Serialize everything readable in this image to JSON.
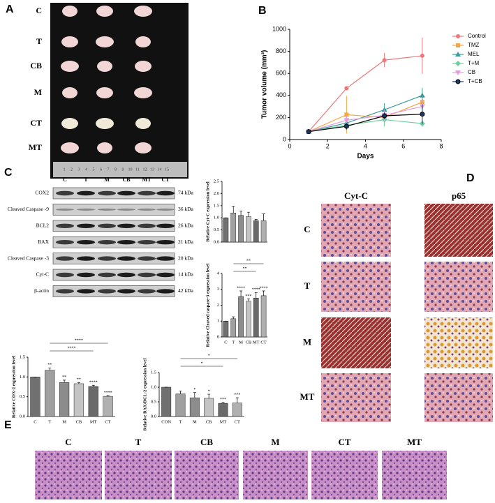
{
  "panel_labels": [
    "A",
    "B",
    "C",
    "D",
    "E"
  ],
  "photo": {
    "rows": [
      "C",
      "T",
      "CB",
      "M",
      "CT",
      "MT"
    ],
    "ruler": [
      1,
      2,
      3,
      4,
      5,
      6,
      7,
      8,
      9,
      10,
      11,
      12,
      13,
      14,
      15
    ]
  },
  "blot": {
    "lanes": [
      "C",
      "T",
      "M",
      "CB",
      "MT",
      "CT"
    ],
    "proteins": [
      {
        "name": "COX2",
        "size": "74 kDa"
      },
      {
        "name": "Cleaved Caspase -9",
        "size": "36 kDa"
      },
      {
        "name": "BCL2",
        "size": "26 kDa"
      },
      {
        "name": "BAX",
        "size": "21 kDa"
      },
      {
        "name": "Cleaved Caspase -3",
        "size": "20 kDa"
      },
      {
        "name": "Cyt-C",
        "size": "14 kDa"
      },
      {
        "name": "β-actin",
        "size": "42 kDa"
      }
    ]
  },
  "histology_d": {
    "columns": [
      "Cyt-C",
      "p65"
    ],
    "rows": [
      "C",
      "T",
      "M",
      "MT"
    ]
  },
  "histology_e": {
    "columns": [
      "C",
      "T",
      "CB",
      "M",
      "CT",
      "MT"
    ]
  },
  "chart_data": [
    {
      "type": "line",
      "y_label": "Tumor volume (mm³)",
      "x_label": "Days",
      "x": [
        1,
        3,
        5,
        7
      ],
      "xlim": [
        0,
        8
      ],
      "xticks": [
        0,
        2,
        4,
        6,
        8
      ],
      "ylim": [
        0,
        1000
      ],
      "yticks": [
        0,
        200,
        400,
        600,
        800,
        1000
      ],
      "series": [
        {
          "name": "Control",
          "color": "#e8787a",
          "marker": "circle",
          "values": [
            72,
            465,
            720,
            760
          ],
          "errors": [
            0,
            15,
            65,
            165
          ]
        },
        {
          "name": "TMZ",
          "color": "#f5a742",
          "marker": "square",
          "values": [
            72,
            225,
            200,
            340
          ],
          "errors": [
            0,
            170,
            70,
            60
          ]
        },
        {
          "name": "MEL",
          "color": "#3a9c9c",
          "marker": "triangle",
          "values": [
            72,
            150,
            270,
            400
          ],
          "errors": [
            0,
            40,
            60,
            70
          ]
        },
        {
          "name": "T+M",
          "color": "#6fcf9f",
          "marker": "diamond",
          "values": [
            72,
            130,
            180,
            145
          ],
          "errors": [
            0,
            20,
            60,
            30
          ]
        },
        {
          "name": "CB",
          "color": "#e49ce0",
          "marker": "triangle-down",
          "values": [
            72,
            175,
            220,
            300
          ],
          "errors": [
            0,
            40,
            50,
            60
          ]
        },
        {
          "name": "T+CB",
          "color": "#1b3a6b",
          "marker": "circle",
          "values": [
            72,
            120,
            215,
            230
          ],
          "errors": [
            0,
            30,
            30,
            90
          ]
        }
      ]
    },
    {
      "type": "bar",
      "y_label": "Relative Cyt-C expression level",
      "categories": [
        null,
        null,
        null,
        null,
        null,
        null
      ],
      "values": [
        1.0,
        1.2,
        1.1,
        1.05,
        0.88,
        0.88
      ],
      "errors": [
        0,
        0.27,
        0.18,
        0.18,
        0.05,
        0.28
      ],
      "colors": [
        "#707070",
        "#a0a0a0",
        "#8c8c8c",
        "#c4c4c4",
        "#6a6a6a",
        "#b0b0b0"
      ],
      "ylim": [
        0,
        2.5
      ],
      "yticks": [
        {
          "value": 0,
          "label": "0.0"
        },
        0.5,
        {
          "value": 1,
          "label": "1.0"
        },
        1.5,
        {
          "value": 2,
          "label": "2.0"
        },
        2.5
      ]
    },
    {
      "type": "bar",
      "y_label": "Relative Cleaved caspase-3 expression level",
      "categories": [
        "C",
        "T",
        "M",
        "CB",
        "MT",
        "CT"
      ],
      "values": [
        1.0,
        1.15,
        2.55,
        2.25,
        2.45,
        2.6
      ],
      "errors": [
        0,
        0.12,
        0.35,
        0.15,
        0.35,
        0.3
      ],
      "significance": [
        null,
        null,
        "****",
        "***",
        "****",
        "****"
      ],
      "brackets": [
        {
          "label": "**",
          "from": "T",
          "to": "CT"
        },
        {
          "label": "**",
          "from": "T",
          "to": "MT"
        }
      ],
      "colors": [
        "#707070",
        "#a0a0a0",
        "#8c8c8c",
        "#c4c4c4",
        "#6a6a6a",
        "#b0b0b0"
      ],
      "ylim": [
        0,
        4
      ],
      "yticks": [
        0,
        1,
        2,
        3,
        4
      ]
    },
    {
      "type": "bar",
      "y_label": "Relative COX-2 expression level",
      "categories": [
        "C",
        "T",
        "M",
        "CB",
        "MT",
        "CT"
      ],
      "values": [
        1.0,
        1.17,
        0.86,
        0.83,
        0.76,
        0.51
      ],
      "errors": [
        0,
        0.06,
        0.06,
        0.03,
        0.03,
        0.02
      ],
      "significance": [
        null,
        "**",
        "**",
        "**",
        "****",
        "****"
      ],
      "brackets": [
        {
          "label": "****",
          "from": "T",
          "to": "CT"
        },
        {
          "label": "****",
          "from": "T",
          "to": "MT"
        }
      ],
      "colors": [
        "#707070",
        "#a0a0a0",
        "#8c8c8c",
        "#c4c4c4",
        "#6a6a6a",
        "#b0b0b0"
      ],
      "ylim": [
        0,
        1.5
      ],
      "yticks": [
        {
          "value": 0,
          "label": "0.0"
        },
        0.5,
        {
          "value": 1,
          "label": "1.0"
        },
        1.5
      ]
    },
    {
      "type": "bar",
      "y_label": "Relative BAX/BCL-2 expression level",
      "categories": [
        "CON",
        "T",
        "M",
        "CB",
        "MT",
        "CT"
      ],
      "values": [
        1.0,
        0.77,
        0.64,
        0.62,
        0.45,
        0.46
      ],
      "errors": [
        0,
        0.1,
        0.18,
        0.14,
        0.03,
        0.18
      ],
      "significance": [
        null,
        null,
        "*",
        "*",
        "***",
        "***"
      ],
      "brackets": [
        {
          "label": "*",
          "from": "T",
          "to": "CT"
        },
        {
          "label": "*",
          "from": "T",
          "to": "MT"
        }
      ],
      "colors": [
        "#707070",
        "#a0a0a0",
        "#8c8c8c",
        "#c4c4c4",
        "#6a6a6a",
        "#b0b0b0"
      ],
      "ylim": [
        0,
        1.5
      ],
      "yticks": [
        {
          "value": 0,
          "label": "0.0"
        },
        0.5,
        {
          "value": 1,
          "label": "1.0"
        },
        1.5
      ]
    }
  ]
}
